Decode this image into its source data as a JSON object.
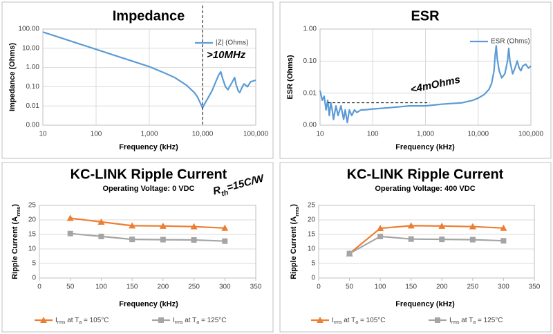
{
  "chart_data": [
    {
      "type": "line",
      "title": "Impedance",
      "x_label": "Frequency (kHz)",
      "y_label": "Impedance (Ohms)",
      "xlog": true,
      "ylog": true,
      "grid": true,
      "legend": "upper right",
      "xlim": [
        10,
        100000
      ],
      "xticks": [
        10,
        100,
        {
          "value": 1000,
          "label": "1,000"
        },
        {
          "value": 10000,
          "label": "10,000"
        },
        {
          "value": 100000,
          "label": "100,000"
        }
      ],
      "ylim": [
        0.001,
        100
      ],
      "yticks": [
        {
          "value": 0.001,
          "label": "0.00"
        },
        {
          "value": 0.01,
          "label": "0.01"
        },
        {
          "value": 0.1,
          "label": "0.10"
        },
        {
          "value": 1,
          "label": "1.00"
        },
        {
          "value": 10,
          "label": "10.00"
        },
        {
          "value": 100,
          "label": "100.00"
        }
      ],
      "x": [
        10,
        20,
        50,
        100,
        200,
        500,
        1000,
        2000,
        3000,
        5000,
        7000,
        8000,
        9000,
        10000,
        12000,
        15000,
        18000,
        20000,
        22000,
        24000,
        27000,
        30000,
        35000,
        40000,
        43000,
        47000,
        50000,
        55000,
        60000,
        70000,
        80000,
        90000,
        100000
      ],
      "series": [
        {
          "name": "|Z| (Ohms)",
          "color": "#5b9bd5",
          "values": [
            70,
            37.5,
            16.5,
            8.8,
            4.7,
            2.07,
            1.1,
            0.5,
            0.3,
            0.12,
            0.05,
            0.03,
            0.015,
            0.008,
            0.02,
            0.06,
            0.2,
            0.4,
            0.6,
            0.25,
            0.1,
            0.07,
            0.15,
            0.3,
            0.12,
            0.06,
            0.05,
            0.09,
            0.14,
            0.1,
            0.18,
            0.2,
            0.22
          ]
        }
      ],
      "vline": {
        "x": 10000,
        "text": ">10MHz"
      }
    },
    {
      "type": "line",
      "title": "ESR",
      "x_label": "Frequency (kHz)",
      "y_label": "ESR (Ohms)",
      "xlog": true,
      "ylog": true,
      "grid": true,
      "legend": "upper right",
      "xlim": [
        10,
        100000
      ],
      "xticks": [
        10,
        100,
        {
          "value": 1000,
          "label": "1,000"
        },
        {
          "value": 10000,
          "label": "10,000"
        },
        {
          "value": 100000,
          "label": "100,000"
        }
      ],
      "ylim": [
        0.001,
        1
      ],
      "yticks": [
        {
          "value": 0.001,
          "label": "0.00"
        },
        {
          "value": 0.01,
          "label": "0.01"
        },
        {
          "value": 0.1,
          "label": "0.10"
        },
        {
          "value": 1,
          "label": "1.00"
        }
      ],
      "x": [
        10,
        11,
        12,
        13,
        14,
        15,
        16,
        17,
        18,
        20,
        22,
        25,
        28,
        30,
        33,
        36,
        40,
        45,
        50,
        60,
        70,
        100,
        200,
        500,
        1000,
        2000,
        5000,
        8000,
        10000,
        13000,
        16000,
        18000,
        20000,
        21000,
        22000,
        23000,
        25000,
        28000,
        32000,
        36000,
        38000,
        40000,
        45000,
        50000,
        55000,
        60000,
        65000,
        70000,
        80000,
        90000,
        100000
      ],
      "series": [
        {
          "name": "ESR (Ohms)",
          "color": "#5b9bd5",
          "values": [
            0.012,
            0.006,
            0.008,
            0.003,
            0.006,
            0.002,
            0.005,
            0.003,
            0.0015,
            0.004,
            0.002,
            0.004,
            0.0015,
            0.003,
            0.0012,
            0.003,
            0.002,
            0.003,
            0.0025,
            0.003,
            0.003,
            0.0032,
            0.0035,
            0.004,
            0.004,
            0.0045,
            0.005,
            0.006,
            0.007,
            0.009,
            0.013,
            0.02,
            0.05,
            0.15,
            0.3,
            0.12,
            0.05,
            0.03,
            0.04,
            0.1,
            0.25,
            0.1,
            0.04,
            0.06,
            0.1,
            0.06,
            0.05,
            0.07,
            0.08,
            0.06,
            0.07
          ]
        }
      ],
      "hline": {
        "y": 0.005,
        "x": [
          14,
          1200
        ],
        "text": "<4mOhms"
      }
    },
    {
      "type": "line",
      "title": "KC-LINK Ripple Current",
      "subtitle": "Operating Voltage: 0 VDC",
      "x_label": "Frequency (kHz)",
      "y_label": [
        "Ripple Current (A",
        "rms",
        ")"
      ],
      "grid": true,
      "legend": "bottom",
      "xlim": [
        0,
        350
      ],
      "xticks": [
        0,
        50,
        100,
        150,
        200,
        250,
        300,
        350
      ],
      "ylim": [
        0,
        25
      ],
      "yticks": [
        0,
        5,
        10,
        15,
        20,
        25
      ],
      "x": [
        50,
        100,
        150,
        200,
        250,
        300
      ],
      "series": [
        {
          "name": [
            "I",
            "rms",
            " at T",
            "a",
            " = 105°C"
          ],
          "color": "#ed7d31",
          "marker": "triangle",
          "values": [
            20.6,
            19.3,
            18.0,
            17.9,
            17.7,
            17.2
          ]
        },
        {
          "name": [
            "I",
            "rms",
            " at T",
            "a",
            " = 125°C"
          ],
          "color": "#a5a5a5",
          "marker": "square",
          "values": [
            15.3,
            14.3,
            13.3,
            13.2,
            13.1,
            12.7
          ]
        }
      ],
      "annotation": [
        "R",
        "th",
        "=15C/W"
      ]
    },
    {
      "type": "line",
      "title": "KC-LINK Ripple Current",
      "subtitle": "Operating Voltage: 400 VDC",
      "x_label": "Frequency (kHz)",
      "y_label": [
        "Ripple Current (A",
        "rms",
        ")"
      ],
      "grid": true,
      "legend": "bottom",
      "xlim": [
        0,
        350
      ],
      "xticks": [
        0,
        50,
        100,
        150,
        200,
        250,
        300,
        350
      ],
      "ylim": [
        0,
        25
      ],
      "yticks": [
        0,
        5,
        10,
        15,
        20,
        25
      ],
      "x": [
        50,
        100,
        150,
        200,
        250,
        300
      ],
      "series": [
        {
          "name": [
            "I",
            "rms",
            " at T",
            "a",
            " = 105°C"
          ],
          "color": "#ed7d31",
          "marker": "triangle",
          "values": [
            8.4,
            17.1,
            18.0,
            17.9,
            17.7,
            17.2
          ]
        },
        {
          "name": [
            "I",
            "rms",
            " at T",
            "a",
            " = 125°C"
          ],
          "color": "#a5a5a5",
          "marker": "square",
          "values": [
            8.4,
            14.3,
            13.4,
            13.3,
            13.2,
            12.8
          ]
        }
      ]
    }
  ]
}
